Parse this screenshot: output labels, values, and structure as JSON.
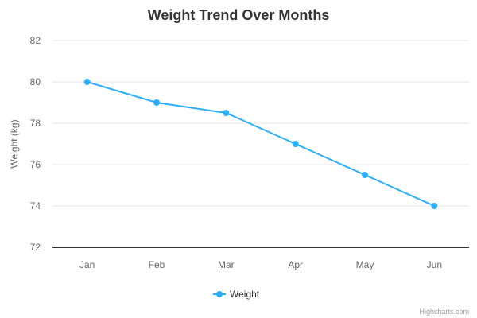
{
  "chart_data": {
    "type": "line",
    "title": "Weight Trend Over Months",
    "xlabel": "",
    "ylabel": "Weight (kg)",
    "categories": [
      "Jan",
      "Feb",
      "Mar",
      "Apr",
      "May",
      "Jun"
    ],
    "series": [
      {
        "name": "Weight",
        "values": [
          80,
          79,
          78.5,
          77,
          75.5,
          74
        ],
        "color": "#2caffe"
      }
    ],
    "ylim": [
      72,
      82
    ],
    "yticks": [
      72,
      74,
      76,
      78,
      80,
      82
    ],
    "grid": true,
    "legend_position": "bottom-center"
  },
  "credits": "Highcharts.com",
  "colors": {
    "grid": "#e6e6e6",
    "axis_line": "#333333",
    "series": "#2caffe"
  }
}
